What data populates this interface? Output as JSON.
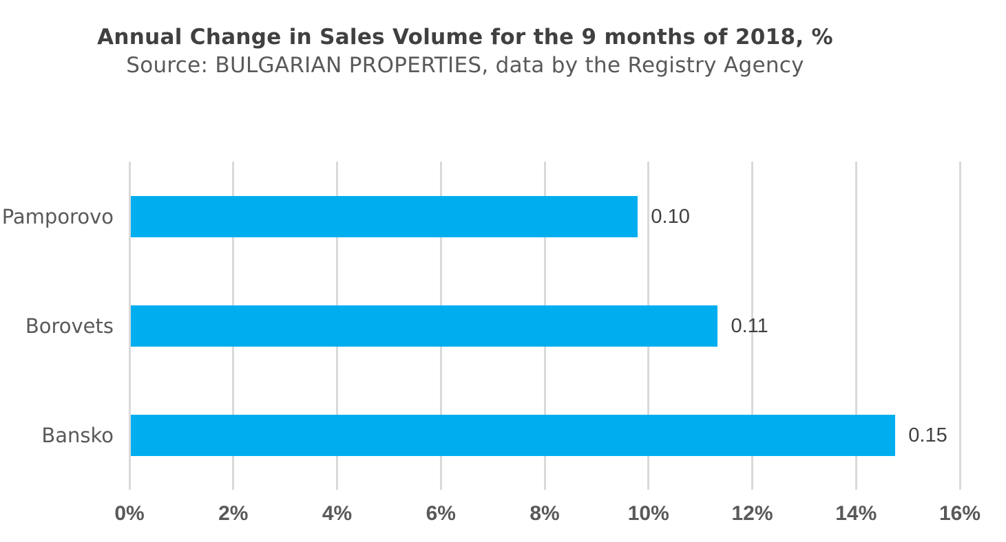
{
  "header": {
    "title": "Annual Change in Sales Volume for the 9 months of 2018, %",
    "subtitle": "Source: BULGARIAN PROPERTIES, data by the Registry Agency"
  },
  "chart_data": {
    "type": "bar",
    "orientation": "horizontal",
    "title": "Annual Change in Sales Volume for the 9 months of 2018, %",
    "subtitle": "Source: BULGARIAN PROPERTIES, data by the Registry Agency",
    "categories": [
      "Pamporovo",
      "Borovets",
      "Bansko"
    ],
    "values_percent": [
      9.77,
      11.31,
      14.73
    ],
    "data_labels": [
      "0.10",
      "0.11",
      "0.15"
    ],
    "x_axis": {
      "min": 0,
      "max": 16,
      "step": 2,
      "tick_labels": [
        "0%",
        "2%",
        "4%",
        "6%",
        "8%",
        "10%",
        "12%",
        "14%",
        "16%"
      ]
    },
    "grid": true,
    "legend": "none",
    "colors": {
      "bar": "#00aeef",
      "gridline": "#d9d9d9",
      "title": "#404040",
      "subtitle": "#595959",
      "category_label": "#595959",
      "tick_label": "#595959",
      "data_label": "#404040"
    }
  }
}
